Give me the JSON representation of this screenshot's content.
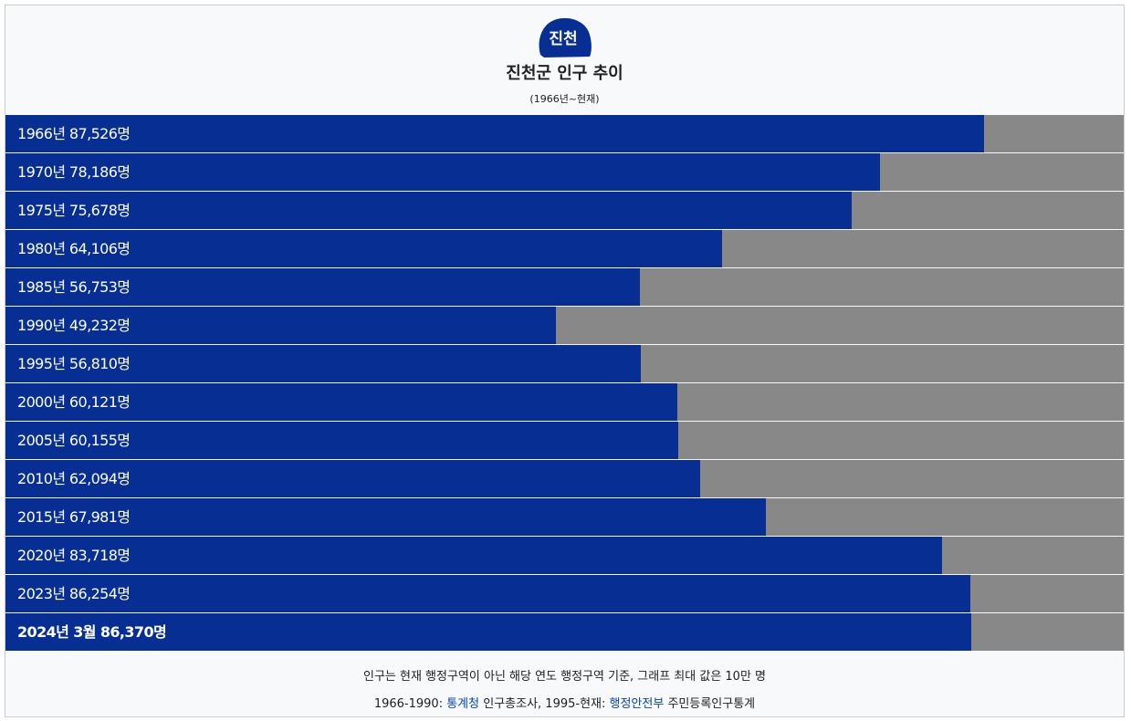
{
  "header": {
    "title": "진천군 인구 추이",
    "subtitle": "(1966년~현재)"
  },
  "logo": {
    "icon": "jincheon-logo-icon",
    "text": "진천"
  },
  "colors": {
    "bar": "#072f93",
    "track": "#888888"
  },
  "chart_data": {
    "type": "bar",
    "orientation": "horizontal",
    "title": "진천군 인구 추이",
    "subtitle": "(1966년~현재)",
    "xlim": [
      0,
      100000
    ],
    "categories": [
      "1966년",
      "1970년",
      "1975년",
      "1980년",
      "1985년",
      "1990년",
      "1995년",
      "2000년",
      "2005년",
      "2010년",
      "2015년",
      "2020년",
      "2023년",
      "2024년 3월"
    ],
    "values": [
      87526,
      78186,
      75678,
      64106,
      56753,
      49232,
      56810,
      60121,
      60155,
      62094,
      67981,
      83718,
      86254,
      86370
    ],
    "labels": [
      "1966년 87,526명",
      "1970년 78,186명",
      "1975년 75,678명",
      "1980년 64,106명",
      "1985년 56,753명",
      "1990년 49,232명",
      "1995년 56,810명",
      "2000년 60,121명",
      "2005년 60,155명",
      "2010년 62,094명",
      "2015년 67,981명",
      "2020년 83,718명",
      "2023년 86,254명",
      "2024년 3월 86,370명"
    ]
  },
  "footer": {
    "note": "인구는 현재 행정구역이 아닌 해당 연도 행정구역 기준, 그래프 최대 값은 10만 명",
    "source_1_prefix": "1966-1990: ",
    "source_1_link": "통계청",
    "source_1_suffix": " 인구총조사, 1995-현재: ",
    "source_2_link": "행정안전부",
    "source_2_suffix": " 주민등록인구통계"
  }
}
